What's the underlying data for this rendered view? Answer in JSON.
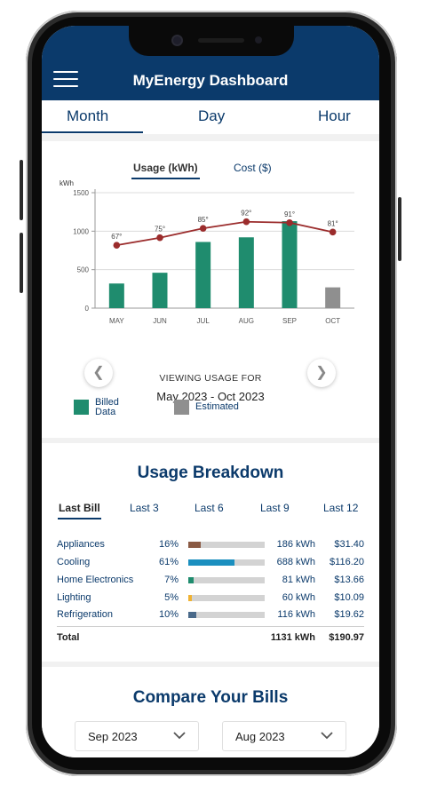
{
  "app": {
    "title": "MyEnergy Dashboard"
  },
  "period_tabs": [
    "Month",
    "Day",
    "Hour"
  ],
  "usage": {
    "toggle": [
      "Usage (kWh)",
      "Cost ($)"
    ],
    "viewing_label": "VIEWING USAGE FOR",
    "viewing_range": "May 2023 - Oct 2023",
    "legend": {
      "billed": "Billed\nData",
      "estimated": "Estimated"
    }
  },
  "chart_data": {
    "type": "bar",
    "ylabel": "kWh",
    "ylim": [
      0,
      1500
    ],
    "yticks": [
      0,
      500,
      1000,
      1500
    ],
    "categories": [
      "MAY",
      "JUN",
      "JUL",
      "AUG",
      "SEP",
      "OCT"
    ],
    "series": [
      {
        "values": [
          320,
          460,
          860,
          920,
          1130,
          270
        ],
        "estimated": [
          false,
          false,
          false,
          false,
          false,
          true
        ]
      },
      {
        "values": [
          67,
          75,
          85,
          92,
          91,
          81
        ],
        "labels": [
          "67°",
          "75°",
          "85°",
          "92°",
          "91°",
          "81°"
        ]
      }
    ],
    "colors": {
      "billed": "#1f8c6e",
      "estimated": "#8f8f8f",
      "temp_line": "#9b2c2c"
    },
    "grid": true
  },
  "breakdown": {
    "title": "Usage Breakdown",
    "tabs": [
      "Last Bill",
      "Last 3",
      "Last 6",
      "Last 9",
      "Last 12"
    ],
    "rows": [
      {
        "name": "Appliances",
        "pct": "16%",
        "fraction": 0.16,
        "color": "#8a5a44",
        "kwh": "186 kWh",
        "cost": "$31.40"
      },
      {
        "name": "Cooling",
        "pct": "61%",
        "fraction": 0.61,
        "color": "#1b8fbf",
        "kwh": "688 kWh",
        "cost": "$116.20"
      },
      {
        "name": "Home Electronics",
        "pct": "7%",
        "fraction": 0.07,
        "color": "#1f8c6e",
        "kwh": "81 kWh",
        "cost": "$13.66"
      },
      {
        "name": "Lighting",
        "pct": "5%",
        "fraction": 0.05,
        "color": "#f0b232",
        "kwh": "60 kWh",
        "cost": "$10.09"
      },
      {
        "name": "Refrigeration",
        "pct": "10%",
        "fraction": 0.1,
        "color": "#4a6a8a",
        "kwh": "116 kWh",
        "cost": "$19.62"
      }
    ],
    "total": {
      "name": "Total",
      "kwh": "1131 kWh",
      "cost": "$190.97"
    }
  },
  "compare": {
    "title": "Compare Your Bills",
    "left": "Sep 2023",
    "right": "Aug 2023"
  }
}
